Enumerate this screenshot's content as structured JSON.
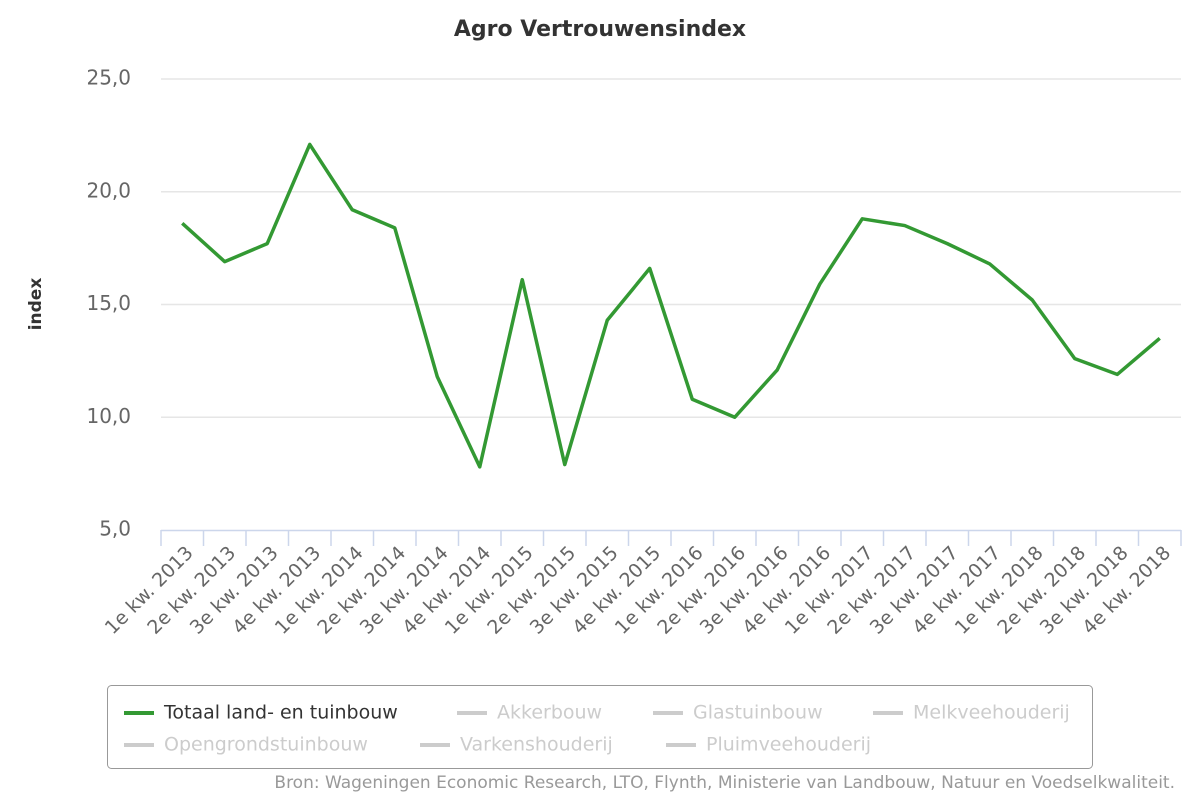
{
  "chart_data": {
    "type": "line",
    "title": "Agro Vertrouwensindex",
    "y_label": "index",
    "categories": [
      "1e kw. 2013",
      "2e kw. 2013",
      "3e kw. 2013",
      "4e kw. 2013",
      "1e kw. 2014",
      "2e kw. 2014",
      "3e kw. 2014",
      "4e kw. 2014",
      "1e kw. 2015",
      "2e kw. 2015",
      "3e kw. 2015",
      "4e kw. 2015",
      "1e kw. 2016",
      "2e kw. 2016",
      "3e kw. 2016",
      "4e kw. 2016",
      "1e kw. 2017",
      "2e kw. 2017",
      "3e kw. 2017",
      "4e kw. 2017",
      "1e kw. 2018",
      "2e kw. 2018",
      "3e kw. 2018",
      "4e kw. 2018"
    ],
    "series": [
      {
        "name": "Totaal land- en tuinbouw",
        "color": "#339933",
        "visible": true,
        "values": [
          18.6,
          16.9,
          17.7,
          22.1,
          19.2,
          18.4,
          11.8,
          7.8,
          16.1,
          7.9,
          14.3,
          16.6,
          10.8,
          10.0,
          12.1,
          15.9,
          18.8,
          18.5,
          17.7,
          16.8,
          15.2,
          12.6,
          11.9,
          13.5
        ]
      },
      {
        "name": "Akkerbouw",
        "color": "#cccccc",
        "visible": false
      },
      {
        "name": "Glastuinbouw",
        "color": "#cccccc",
        "visible": false
      },
      {
        "name": "Melkveehouderij",
        "color": "#cccccc",
        "visible": false
      },
      {
        "name": "Opengrondstuinbouw",
        "color": "#cccccc",
        "visible": false
      },
      {
        "name": "Varkenshouderij",
        "color": "#cccccc",
        "visible": false
      },
      {
        "name": "Pluimveehouderij",
        "color": "#cccccc",
        "visible": false
      }
    ],
    "ylim": [
      5,
      25
    ],
    "yticks": [
      {
        "value": 5,
        "label": "5,0"
      },
      {
        "value": 10,
        "label": "10,0"
      },
      {
        "value": 15,
        "label": "15,0"
      },
      {
        "value": 20,
        "label": "20,0"
      },
      {
        "value": 25,
        "label": "25,0"
      }
    ],
    "grid": true,
    "legend": "bottom",
    "credits": "Bron: Wageningen Economic Research, LTO, Flynth, Ministerie van Landbouw, Natuur en Voedselkwaliteit."
  }
}
